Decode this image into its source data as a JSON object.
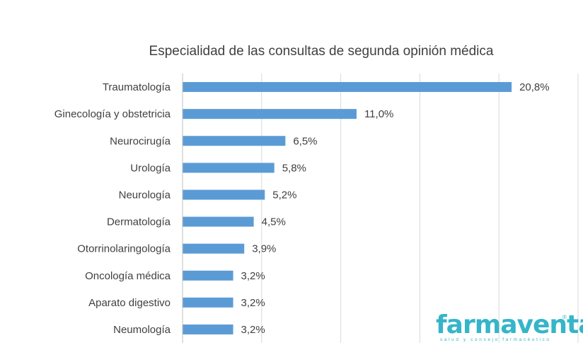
{
  "chart_data": {
    "type": "bar",
    "orientation": "horizontal",
    "title": "Especialidad de las consultas de segunda opinión médica",
    "categories": [
      "Traumatología",
      "Ginecología y obstetricia",
      "Neurocirugía",
      "Urología",
      "Neurología",
      "Dermatología",
      "Otorrinolaringología",
      "Oncología médica",
      "Aparato digestivo",
      "Neumología"
    ],
    "values": [
      20.8,
      11.0,
      6.5,
      5.8,
      5.2,
      4.5,
      3.9,
      3.2,
      3.2,
      3.2
    ],
    "value_labels": [
      "20,8%",
      "11,0%",
      "6,5%",
      "5,8%",
      "5,2%",
      "4,5%",
      "3,9%",
      "3,2%",
      "3,2%",
      "3,2%"
    ],
    "xlim": [
      0,
      25
    ],
    "grid": "vertical",
    "bar_color": "#5b9bd5"
  },
  "logo": {
    "brand_part1": "farma",
    "brand_part2": "ventas",
    "tagline": "salud y consejo farmacéutico",
    "reg_mark": "®",
    "color": "#35b5c8"
  }
}
